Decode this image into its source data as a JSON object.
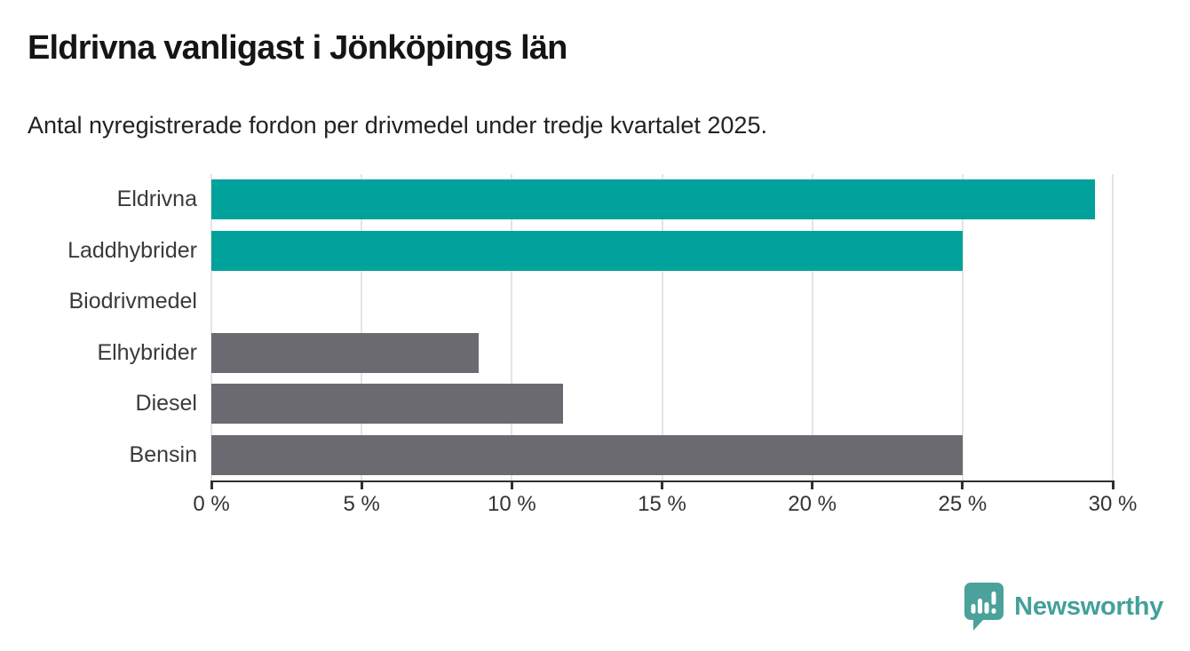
{
  "header": {
    "title": "Eldrivna vanligast i Jönköpings län",
    "subtitle": "Antal nyregistrerade fordon per drivmedel under tredje kvartalet 2025."
  },
  "chart_data": {
    "type": "bar",
    "orientation": "horizontal",
    "title": "Eldrivna vanligast i Jönköpings län",
    "subtitle": "Antal nyregistrerade fordon per drivmedel under tredje kvartalet 2025.",
    "categories": [
      "Eldrivna",
      "Laddhybrider",
      "Biodrivmedel",
      "Elhybrider",
      "Diesel",
      "Bensin"
    ],
    "values": [
      29.4,
      25.0,
      0.0,
      8.9,
      11.7,
      25.0
    ],
    "unit": "%",
    "xlim": [
      0,
      30
    ],
    "x_ticks": [
      0,
      5,
      10,
      15,
      20,
      25,
      30
    ],
    "x_tick_labels": [
      "0 %",
      "5 %",
      "10 %",
      "15 %",
      "20 %",
      "25 %",
      "30 %"
    ],
    "grid": true,
    "legend": "none",
    "bar_colors": [
      "#00a29b",
      "#00a29b",
      "#00a29b",
      "#6b6a71",
      "#6b6a71",
      "#6b6a71"
    ]
  },
  "colors": {
    "accent_teal": "#00a29b",
    "neutral_gray": "#6b6a71",
    "axis": "#2f2f2f",
    "gridline": "#e4e4e4",
    "logo_teal": "#44a09a"
  },
  "footer": {
    "brand": "Newsworthy"
  }
}
